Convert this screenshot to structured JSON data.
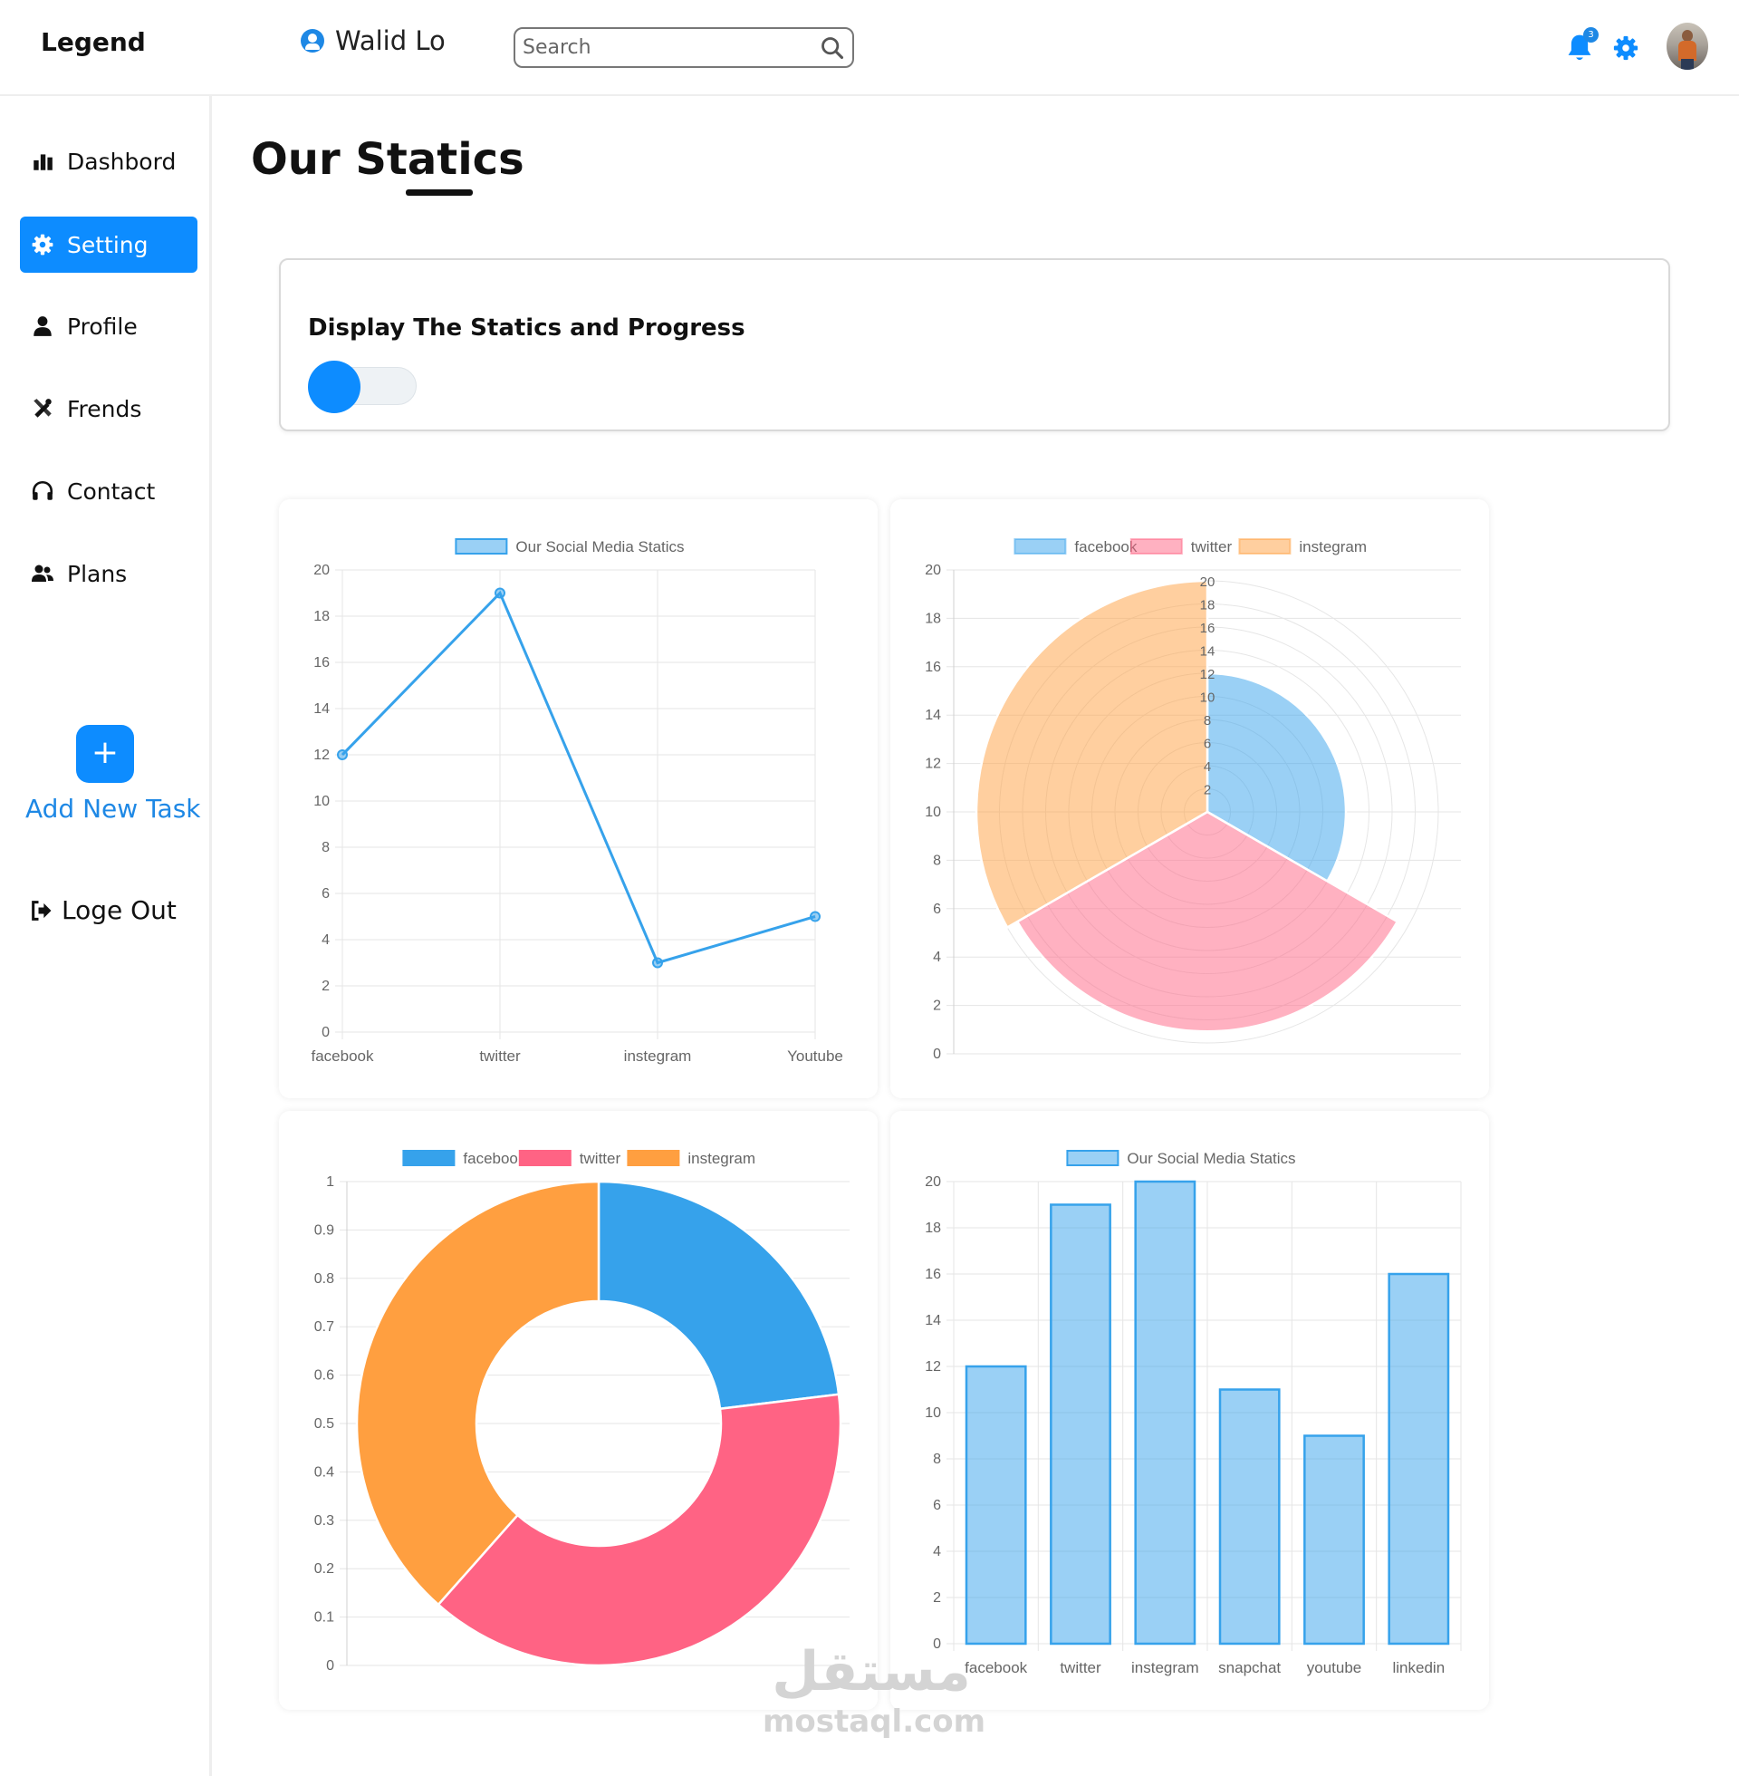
{
  "header": {
    "brand": "Legend",
    "user_name": "Walid Lo",
    "search_placeholder": "Search",
    "notification_count": "3"
  },
  "sidebar": {
    "items": [
      {
        "label": "Dashbord",
        "icon": "bar-chart-icon",
        "active": false
      },
      {
        "label": "Setting",
        "icon": "gear-icon",
        "active": true
      },
      {
        "label": "Profile",
        "icon": "user-icon",
        "active": false
      },
      {
        "label": "Frends",
        "icon": "tools-icon",
        "active": false
      },
      {
        "label": "Contact",
        "icon": "headset-icon",
        "active": false
      },
      {
        "label": "Plans",
        "icon": "users-icon",
        "active": false
      }
    ],
    "add_button": "+",
    "add_label": "Add New Task",
    "logout_label": "Loge Out"
  },
  "main": {
    "title": "Our Statics",
    "toggle_card": {
      "label": "Display The Statics and Progress",
      "enabled": true
    }
  },
  "colors": {
    "accent": "#0d8cff",
    "blue": "#36a2eb",
    "pink": "#ff6384",
    "orange": "#ff9f40"
  },
  "watermark": {
    "arabic": "مستقل",
    "latin": "mostaql.com"
  },
  "chart_data": [
    {
      "type": "line",
      "legend": [
        "Our Social Media Statics"
      ],
      "categories": [
        "facebook",
        "twitter",
        "instegram",
        "Youtube"
      ],
      "series": [
        {
          "name": "Our Social Media Statics",
          "values": [
            12,
            19,
            3,
            5
          ]
        }
      ],
      "ylim": [
        0,
        20
      ],
      "yticks": [
        0,
        2,
        4,
        6,
        8,
        10,
        12,
        14,
        16,
        18,
        20
      ],
      "grid": true,
      "legend_position": "top"
    },
    {
      "type": "polarArea",
      "legend": [
        "facebook",
        "twitter",
        "instegram"
      ],
      "categories": [
        "facebook",
        "twitter",
        "instegram"
      ],
      "values": [
        12,
        19,
        20
      ],
      "r_ticks": [
        2,
        4,
        6,
        8,
        10,
        12,
        14,
        16,
        18,
        20
      ],
      "yticks": [
        0,
        2,
        4,
        6,
        8,
        10,
        12,
        14,
        16,
        18,
        20
      ],
      "ylim": [
        0,
        20
      ],
      "grid": true,
      "legend_position": "top"
    },
    {
      "type": "doughnut",
      "legend": [
        "facebook",
        "twitter",
        "instegram"
      ],
      "categories": [
        "facebook",
        "twitter",
        "instegram"
      ],
      "values": [
        150,
        250,
        250
      ],
      "yticks": [
        0,
        0.1,
        0.2,
        0.3,
        0.4,
        0.5,
        0.6,
        0.7,
        0.8,
        0.9,
        1
      ],
      "ylim": [
        0,
        1
      ],
      "grid": true,
      "legend_position": "top"
    },
    {
      "type": "bar",
      "legend": [
        "Our Social Media Statics"
      ],
      "categories": [
        "facebook",
        "twitter",
        "instegram",
        "snapchat",
        "youtube",
        "linkedin"
      ],
      "series": [
        {
          "name": "Our Social Media Statics",
          "values": [
            12,
            19,
            20,
            11,
            9,
            16
          ]
        }
      ],
      "ylim": [
        0,
        20
      ],
      "yticks": [
        0,
        2,
        4,
        6,
        8,
        10,
        12,
        14,
        16,
        18,
        20
      ],
      "grid": true,
      "legend_position": "top"
    }
  ]
}
